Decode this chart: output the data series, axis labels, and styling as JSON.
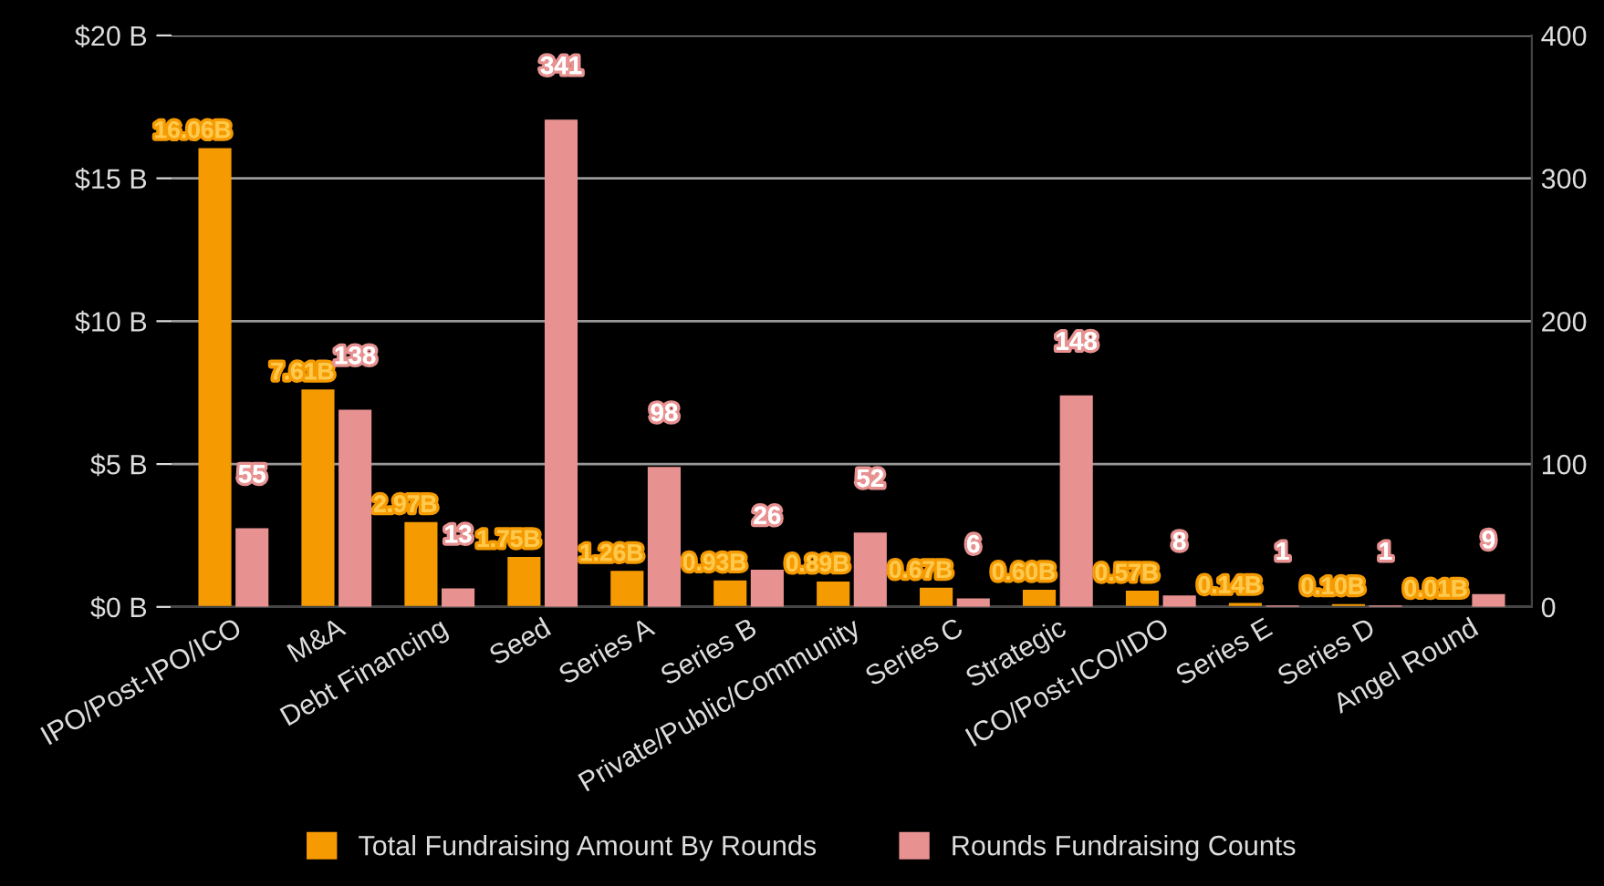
{
  "chart_data": {
    "type": "bar",
    "categories": [
      "IPO/Post-IPO/ICO",
      "M&A",
      "Debt Financing",
      "Seed",
      "Series A",
      "Series B",
      "Private/Public/Community",
      "Series C",
      "Strategic",
      "ICO/Post-ICO/IDO",
      "Series E",
      "Series D",
      "Angel Round"
    ],
    "series": [
      {
        "name": "Total Fundraising Amount By Rounds",
        "color": "#f59a00",
        "values": [
          16.06,
          7.61,
          2.97,
          1.75,
          1.26,
          0.93,
          0.89,
          0.67,
          0.6,
          0.57,
          0.14,
          0.1,
          0.01
        ],
        "value_labels": [
          "16.06B",
          "7.61B",
          "2.97B",
          "1.75B",
          "1.26B",
          "0.93B",
          "0.89B",
          "0.67B",
          "0.60B",
          "0.57B",
          "0.14B",
          "0.10B",
          "0.01B"
        ]
      },
      {
        "name": "Rounds Fundraising Counts",
        "color": "#e89191",
        "axis": "y2",
        "values": [
          55,
          138,
          13,
          341,
          98,
          26,
          52,
          6,
          148,
          8,
          1,
          1,
          9
        ],
        "data_labels": true
      }
    ],
    "ylim": [
      0,
      20
    ],
    "yticks": [
      {
        "value": 0,
        "label": "$0 B"
      },
      {
        "value": 5,
        "label": "$5 B"
      },
      {
        "value": 10,
        "label": "$10 B"
      },
      {
        "value": 15,
        "label": "$15 B"
      },
      {
        "value": 20,
        "label": "$20 B"
      }
    ],
    "y2lim": [
      0,
      400
    ],
    "y2ticks": [
      0,
      100,
      200,
      300,
      400
    ],
    "grid": "y",
    "legend": "bottom"
  }
}
